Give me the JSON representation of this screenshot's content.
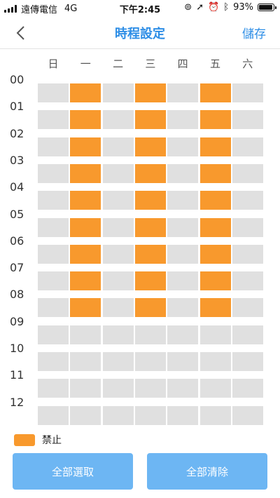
{
  "status_bar": {
    "carrier": "遠傳電信",
    "network": "4G",
    "time": "下午2:45",
    "battery": "93%",
    "battery_level": 0.93,
    "icons": [
      "lock-rotation-icon",
      "location-icon",
      "alarm-icon",
      "bluetooth-icon"
    ]
  },
  "nav": {
    "back_icon": "chevron-left-icon",
    "title": "時程設定",
    "save_label": "儲存"
  },
  "days": [
    "日",
    "一",
    "二",
    "三",
    "四",
    "五",
    "六"
  ],
  "hours": [
    "00",
    "01",
    "02",
    "03",
    "04",
    "05",
    "06",
    "07",
    "08",
    "09",
    "10",
    "11",
    "12"
  ],
  "schedule": {
    "active_days": [
      1,
      3,
      5
    ],
    "active_hours": [
      0,
      1,
      2,
      3,
      4,
      5,
      6,
      7,
      8
    ]
  },
  "legend": {
    "label": "禁止",
    "color": "#f8992d"
  },
  "colors": {
    "accent": "#2e8ee6",
    "blocked": "#f8992d",
    "allowed": "#e0e0e0",
    "button": "#6db6f3"
  },
  "buttons": {
    "select_all": "全部選取",
    "clear_all": "全部清除"
  }
}
